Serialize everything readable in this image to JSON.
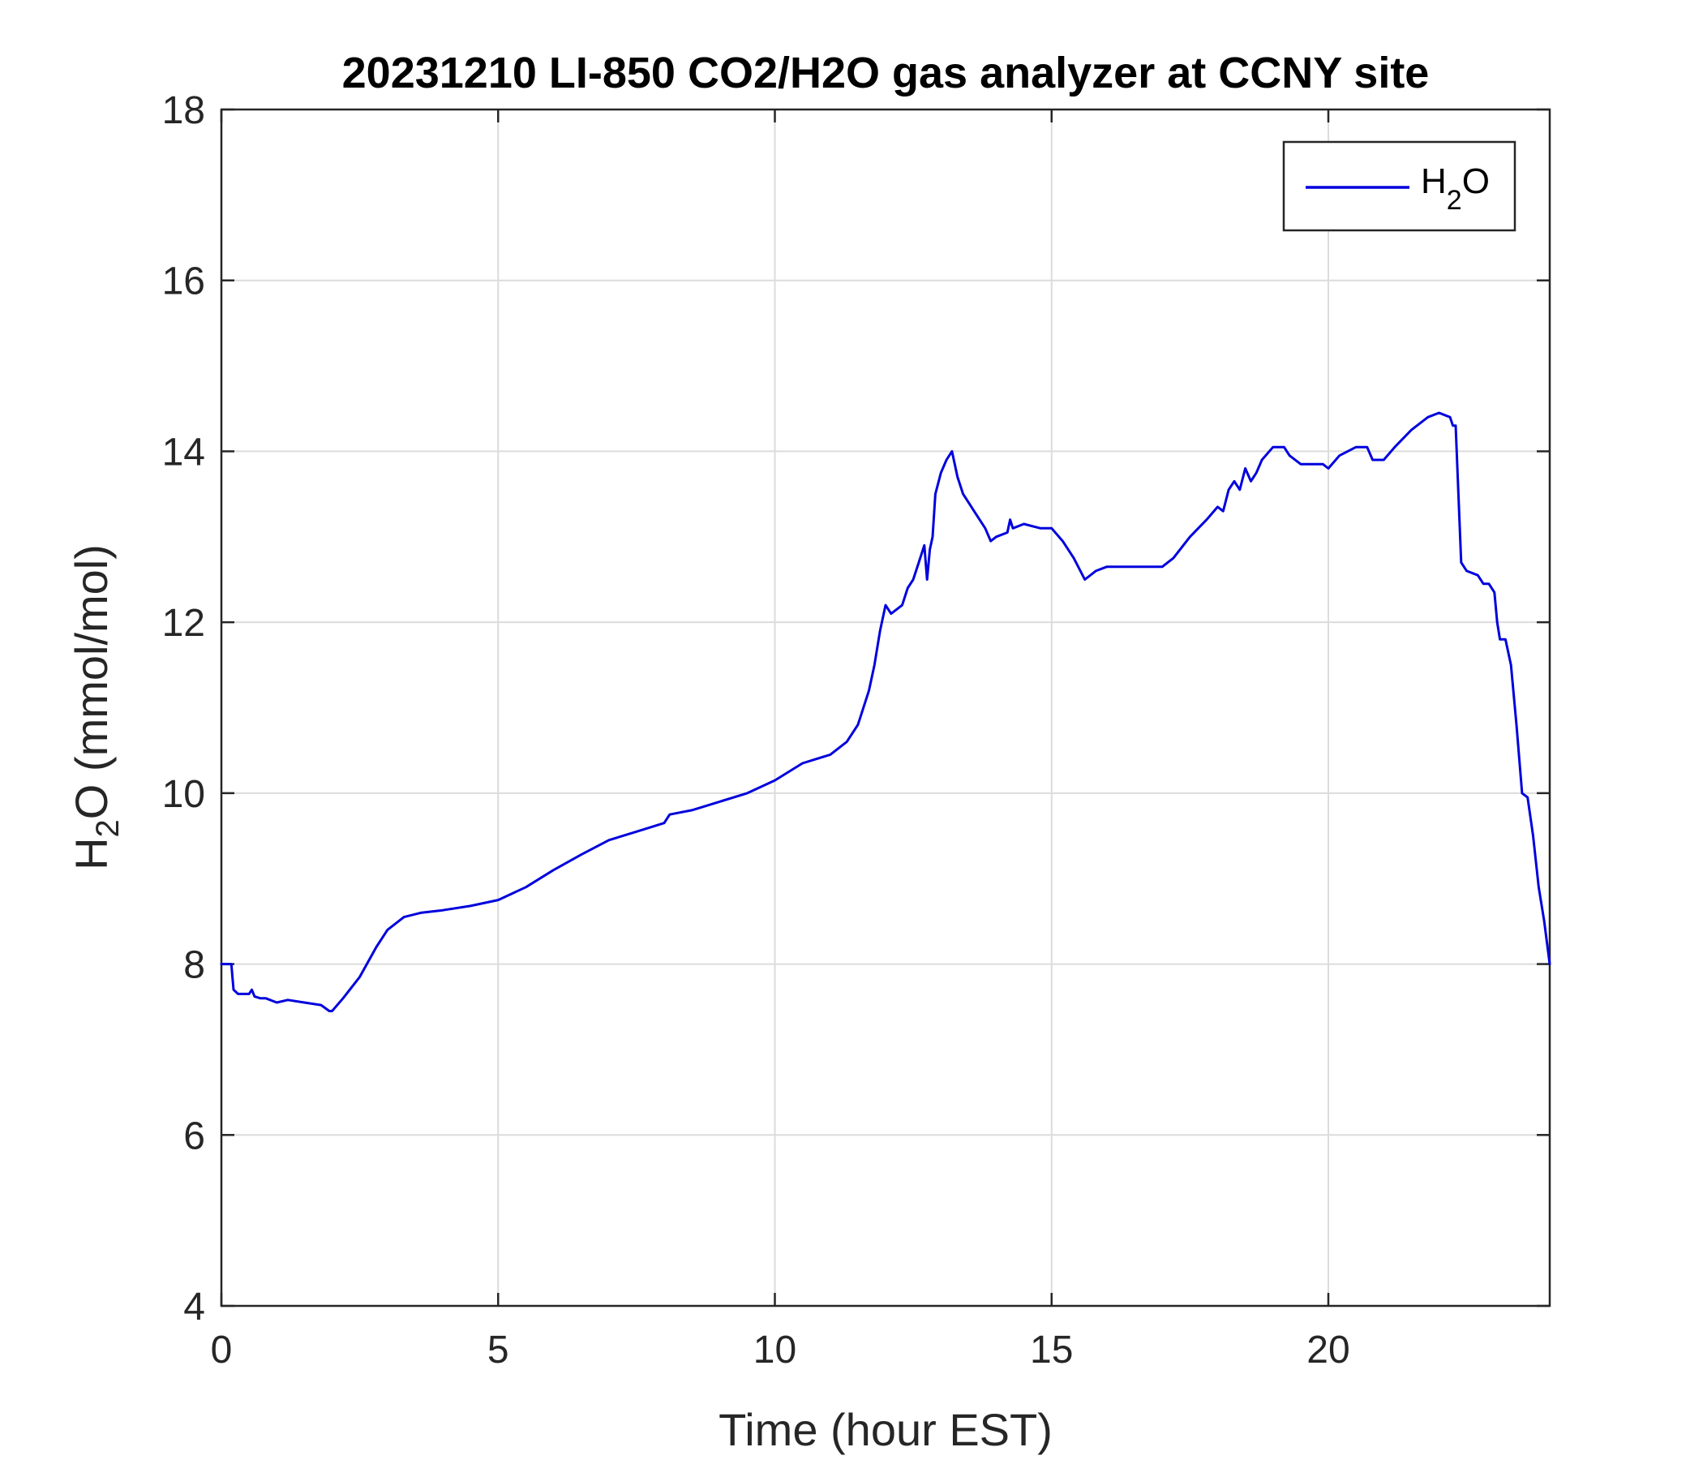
{
  "chart_data": {
    "type": "line",
    "title": "20231210 LI-850 CO2/H2O gas analyzer at CCNY site",
    "xlabel": "Time (hour EST)",
    "ylabel": {
      "main": "H",
      "sub": "2",
      "rest": "O (mmol/mol)"
    },
    "xlim": [
      0,
      24
    ],
    "ylim": [
      4,
      18
    ],
    "xticks": [
      0,
      5,
      10,
      15,
      20
    ],
    "yticks": [
      4,
      6,
      8,
      10,
      12,
      14,
      16,
      18
    ],
    "xtick_labels": [
      "0",
      "5",
      "10",
      "15",
      "20"
    ],
    "ytick_labels": [
      "4",
      "6",
      "8",
      "10",
      "12",
      "14",
      "16",
      "18"
    ],
    "grid": true,
    "legend_position": "top-right",
    "series": [
      {
        "name": {
          "main": "H",
          "sub": "2",
          "rest": "O"
        },
        "color": "#0000dd",
        "x": [
          0,
          0.18,
          0.2,
          0.22,
          0.3,
          0.5,
          0.55,
          0.6,
          0.7,
          0.8,
          1.0,
          1.2,
          1.5,
          1.8,
          1.95,
          2.0,
          2.2,
          2.5,
          2.8,
          3.0,
          3.3,
          3.6,
          4.0,
          4.5,
          5.0,
          5.5,
          6.0,
          6.5,
          7.0,
          7.5,
          8.0,
          8.1,
          8.5,
          9.0,
          9.5,
          10.0,
          10.5,
          11.0,
          11.3,
          11.5,
          11.7,
          11.8,
          11.9,
          12.0,
          12.1,
          12.2,
          12.3,
          12.4,
          12.5,
          12.6,
          12.7,
          12.75,
          12.8,
          12.85,
          12.9,
          13.0,
          13.1,
          13.2,
          13.3,
          13.4,
          13.5,
          13.6,
          13.8,
          13.9,
          14.0,
          14.2,
          14.25,
          14.3,
          14.5,
          14.8,
          15.0,
          15.2,
          15.4,
          15.6,
          15.8,
          16.0,
          16.5,
          17.0,
          17.2,
          17.5,
          17.8,
          18.0,
          18.1,
          18.2,
          18.3,
          18.4,
          18.5,
          18.6,
          18.7,
          18.8,
          19.0,
          19.2,
          19.3,
          19.5,
          19.7,
          19.9,
          20.0,
          20.2,
          20.5,
          20.7,
          20.8,
          21.0,
          21.2,
          21.5,
          21.8,
          22.0,
          22.2,
          22.25,
          22.3,
          22.35,
          22.4,
          22.5,
          22.7,
          22.8,
          22.9,
          23.0,
          23.05,
          23.1,
          23.2,
          23.3,
          23.4,
          23.5,
          23.6,
          23.7,
          23.8,
          23.9,
          24.0
        ],
        "values": [
          8.0,
          8.0,
          7.85,
          7.7,
          7.65,
          7.65,
          7.7,
          7.62,
          7.6,
          7.6,
          7.55,
          7.58,
          7.55,
          7.52,
          7.45,
          7.45,
          7.6,
          7.85,
          8.2,
          8.4,
          8.55,
          8.6,
          8.63,
          8.68,
          8.75,
          8.9,
          9.1,
          9.28,
          9.45,
          9.55,
          9.65,
          9.75,
          9.8,
          9.9,
          10.0,
          10.15,
          10.35,
          10.45,
          10.6,
          10.8,
          11.2,
          11.5,
          11.9,
          12.2,
          12.1,
          12.15,
          12.2,
          12.4,
          12.5,
          12.7,
          12.9,
          12.5,
          12.85,
          13.0,
          13.5,
          13.75,
          13.9,
          14.0,
          13.7,
          13.5,
          13.4,
          13.3,
          13.1,
          12.95,
          13.0,
          13.05,
          13.2,
          13.1,
          13.15,
          13.1,
          13.1,
          12.95,
          12.75,
          12.5,
          12.6,
          12.65,
          12.65,
          12.65,
          12.75,
          13.0,
          13.2,
          13.35,
          13.3,
          13.55,
          13.65,
          13.55,
          13.8,
          13.65,
          13.75,
          13.9,
          14.05,
          14.05,
          13.95,
          13.85,
          13.85,
          13.85,
          13.8,
          13.95,
          14.05,
          14.05,
          13.9,
          13.9,
          14.05,
          14.25,
          14.4,
          14.45,
          14.4,
          14.3,
          14.3,
          13.5,
          12.7,
          12.6,
          12.55,
          12.45,
          12.45,
          12.35,
          12.0,
          11.8,
          11.8,
          11.5,
          10.8,
          10.0,
          9.95,
          9.5,
          8.9,
          8.5,
          8.0
        ]
      }
    ]
  }
}
